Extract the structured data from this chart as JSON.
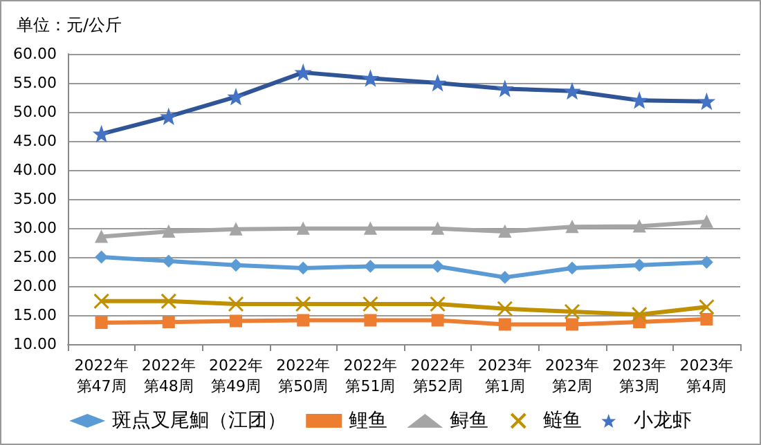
{
  "chart_data": {
    "type": "line",
    "title": "单位：元/公斤",
    "categories": [
      "2022年第47周",
      "2022年第48周",
      "2022年第49周",
      "2022年第50周",
      "2022年第51周",
      "2022年第52周",
      "2023年第1周",
      "2023年第2周",
      "2023年第3周",
      "2023年第4周"
    ],
    "series": [
      {
        "name": "斑点叉尾鮰（江团）",
        "color": "#5b9bd5",
        "marker": "diamond",
        "values": [
          25.0,
          24.3,
          23.6,
          23.1,
          23.4,
          23.4,
          21.5,
          23.1,
          23.6,
          24.1
        ]
      },
      {
        "name": "鲤鱼",
        "color": "#ed7d31",
        "marker": "square",
        "values": [
          13.7,
          13.8,
          14.0,
          14.1,
          14.1,
          14.1,
          13.4,
          13.4,
          13.8,
          14.3
        ]
      },
      {
        "name": "鲟鱼",
        "color": "#a5a5a5",
        "marker": "triangle",
        "values": [
          28.5,
          29.4,
          29.8,
          29.9,
          29.9,
          29.9,
          29.4,
          30.2,
          30.3,
          31.1
        ]
      },
      {
        "name": "鲢鱼",
        "color": "#bf9000",
        "marker": "cross",
        "values": [
          17.4,
          17.4,
          16.9,
          16.9,
          16.9,
          16.9,
          16.1,
          15.6,
          15.1,
          16.4
        ]
      },
      {
        "name": "小龙虾",
        "color": "#2f5597",
        "marker": "star",
        "values": [
          46.2,
          49.2,
          52.6,
          56.8,
          55.8,
          55.0,
          54.0,
          53.6,
          52.0,
          51.8
        ]
      }
    ],
    "ylim": [
      10,
      60
    ],
    "yticks": [
      {
        "value": 10,
        "label": "10.00"
      },
      {
        "value": 15,
        "label": "15.00"
      },
      {
        "value": 20,
        "label": "20.00"
      },
      {
        "value": 25,
        "label": "25.00"
      },
      {
        "value": 30,
        "label": "30.00"
      },
      {
        "value": 35,
        "label": "35.00"
      },
      {
        "value": 40,
        "label": "40.00"
      },
      {
        "value": 45,
        "label": "45.00"
      },
      {
        "value": 50,
        "label": "50.00"
      },
      {
        "value": 55,
        "label": "55.00"
      },
      {
        "value": 60,
        "label": "60.00"
      }
    ],
    "grid": "y",
    "legend": "bottom"
  }
}
